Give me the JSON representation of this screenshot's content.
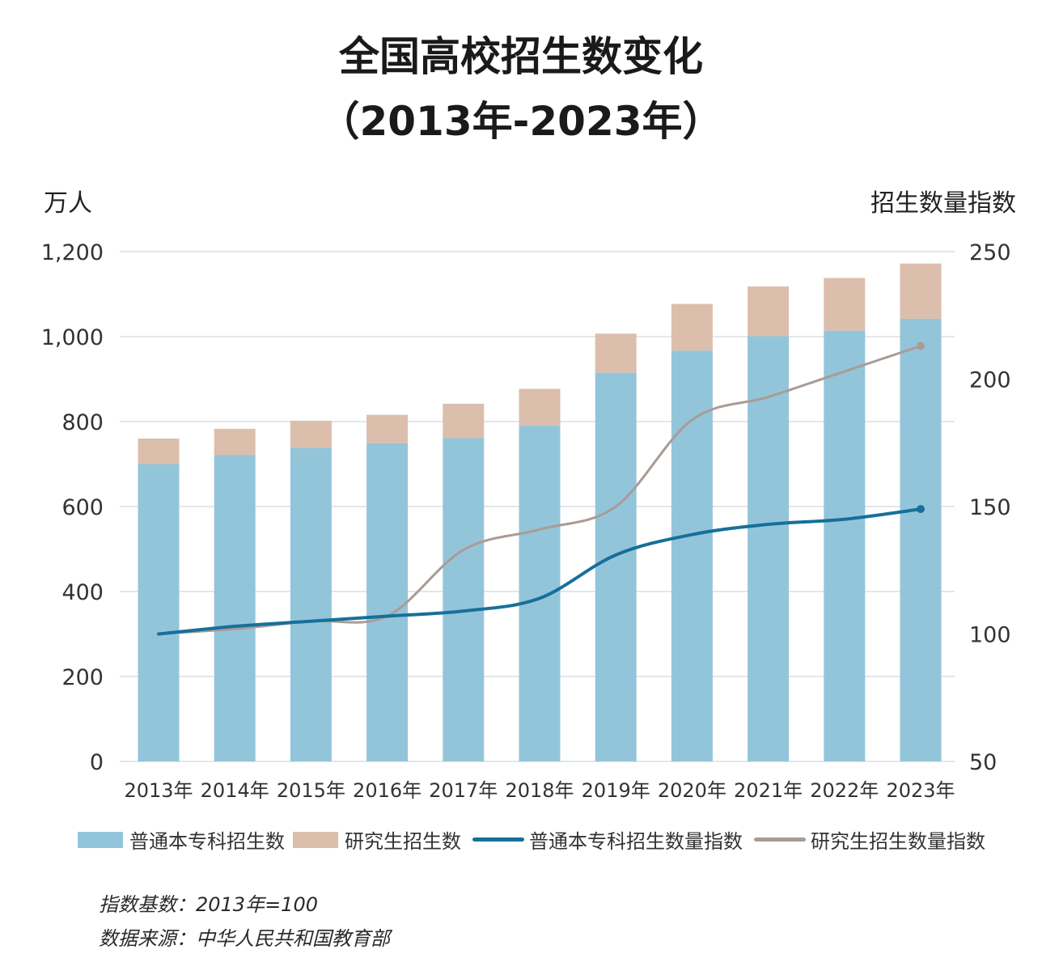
{
  "chart_data": {
    "type": "bar",
    "stacked": true,
    "title": "全国高校招生数变化",
    "subtitle": "（2013年-2023年）",
    "ylabel_left": "万人",
    "ylabel_right": "招生数量指数",
    "ylim_left": [
      0,
      1200
    ],
    "yticks_left": [
      "0",
      "200",
      "400",
      "600",
      "800",
      "1,000",
      "1,200"
    ],
    "ylim_right": [
      50,
      250
    ],
    "yticks_right": [
      "50",
      "100",
      "150",
      "200",
      "250"
    ],
    "categories": [
      "2013年",
      "2014年",
      "2015年",
      "2016年",
      "2017年",
      "2018年",
      "2019年",
      "2020年",
      "2021年",
      "2022年",
      "2023年"
    ],
    "series": [
      {
        "name": "普通本专科招生数",
        "kind": "bar",
        "axis": "left",
        "color": "#93c5da",
        "values": [
          700,
          721,
          738,
          749,
          761,
          791,
          915,
          967,
          1001,
          1014,
          1042
        ]
      },
      {
        "name": "研究生招生数",
        "kind": "bar",
        "axis": "left",
        "color": "#dcbeac",
        "values": [
          60,
          62,
          64,
          67,
          81,
          86,
          92,
          110,
          117,
          124,
          130
        ]
      },
      {
        "name": "普通本专科招生数量指数",
        "kind": "line",
        "axis": "right",
        "color": "#16709a",
        "values": [
          100,
          103,
          105,
          107,
          109,
          114,
          131,
          139,
          143,
          145,
          149
        ]
      },
      {
        "name": "研究生招生数量指数",
        "kind": "line",
        "axis": "right",
        "color": "#aa9b95",
        "values": [
          100,
          102,
          105,
          107,
          133,
          141,
          150,
          184,
          193,
          203,
          213
        ]
      }
    ],
    "grid": true,
    "legend": "bottom",
    "notes": [
      "指数基数：2013年=100",
      "数据来源：中华人民共和国教育部"
    ]
  }
}
